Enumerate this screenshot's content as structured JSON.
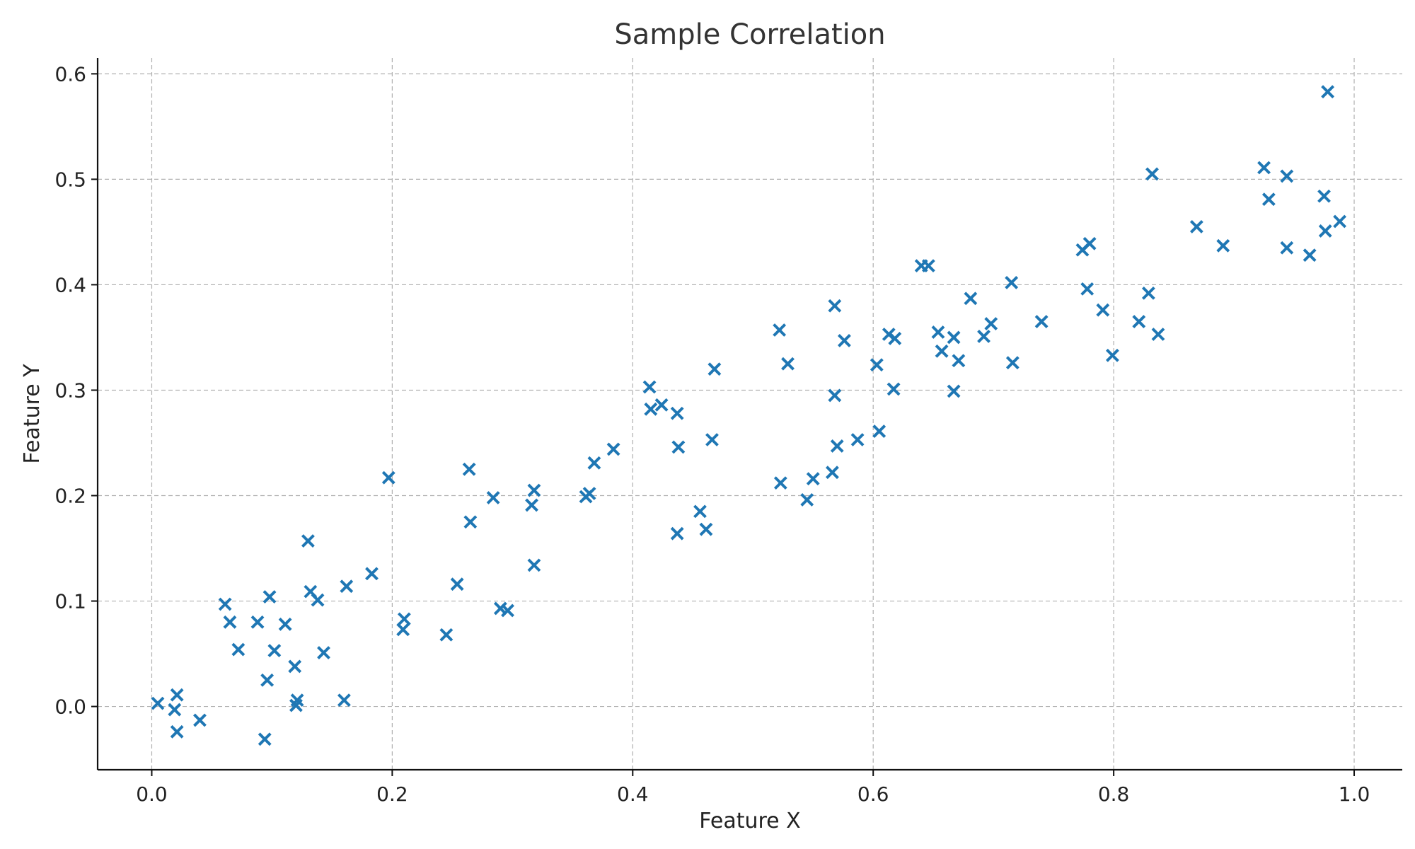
{
  "chart_data": {
    "type": "scatter",
    "title": "Sample Correlation",
    "xlabel": "Feature X",
    "ylabel": "Feature Y",
    "xlim": [
      -0.045,
      1.04
    ],
    "ylim": [
      -0.06,
      0.615
    ],
    "xticks": [
      0.0,
      0.2,
      0.4,
      0.6,
      0.8,
      1.0
    ],
    "xtick_labels": [
      "0.0",
      "0.2",
      "0.4",
      "0.6",
      "0.8",
      "1.0"
    ],
    "yticks": [
      0.0,
      0.1,
      0.2,
      0.3,
      0.4,
      0.5,
      0.6
    ],
    "ytick_labels": [
      "0.0",
      "0.1",
      "0.2",
      "0.3",
      "0.4",
      "0.5",
      "0.6"
    ],
    "grid": true,
    "marker": "x",
    "color": "#1f77b4",
    "series": [
      {
        "points": [
          [
            0.005,
            0.003
          ],
          [
            0.019,
            -0.003
          ],
          [
            0.021,
            0.011
          ],
          [
            0.021,
            -0.024
          ],
          [
            0.04,
            -0.013
          ],
          [
            0.061,
            0.097
          ],
          [
            0.065,
            0.08
          ],
          [
            0.072,
            0.054
          ],
          [
            0.088,
            0.08
          ],
          [
            0.094,
            -0.031
          ],
          [
            0.096,
            0.025
          ],
          [
            0.098,
            0.104
          ],
          [
            0.102,
            0.053
          ],
          [
            0.111,
            0.078
          ],
          [
            0.119,
            0.038
          ],
          [
            0.12,
            0.001
          ],
          [
            0.121,
            0.006
          ],
          [
            0.13,
            0.157
          ],
          [
            0.132,
            0.109
          ],
          [
            0.138,
            0.101
          ],
          [
            0.143,
            0.051
          ],
          [
            0.16,
            0.006
          ],
          [
            0.162,
            0.114
          ],
          [
            0.183,
            0.126
          ],
          [
            0.197,
            0.217
          ],
          [
            0.209,
            0.073
          ],
          [
            0.21,
            0.083
          ],
          [
            0.245,
            0.068
          ],
          [
            0.254,
            0.116
          ],
          [
            0.264,
            0.225
          ],
          [
            0.265,
            0.175
          ],
          [
            0.284,
            0.198
          ],
          [
            0.29,
            0.093
          ],
          [
            0.296,
            0.091
          ],
          [
            0.316,
            0.191
          ],
          [
            0.318,
            0.205
          ],
          [
            0.318,
            0.134
          ],
          [
            0.361,
            0.199
          ],
          [
            0.364,
            0.202
          ],
          [
            0.368,
            0.231
          ],
          [
            0.384,
            0.244
          ],
          [
            0.414,
            0.303
          ],
          [
            0.415,
            0.282
          ],
          [
            0.424,
            0.286
          ],
          [
            0.437,
            0.278
          ],
          [
            0.438,
            0.246
          ],
          [
            0.437,
            0.164
          ],
          [
            0.456,
            0.185
          ],
          [
            0.461,
            0.168
          ],
          [
            0.466,
            0.253
          ],
          [
            0.468,
            0.32
          ],
          [
            0.522,
            0.357
          ],
          [
            0.523,
            0.212
          ],
          [
            0.529,
            0.325
          ],
          [
            0.545,
            0.196
          ],
          [
            0.55,
            0.216
          ],
          [
            0.566,
            0.222
          ],
          [
            0.568,
            0.38
          ],
          [
            0.568,
            0.295
          ],
          [
            0.57,
            0.247
          ],
          [
            0.576,
            0.347
          ],
          [
            0.587,
            0.253
          ],
          [
            0.603,
            0.324
          ],
          [
            0.605,
            0.261
          ],
          [
            0.613,
            0.353
          ],
          [
            0.617,
            0.301
          ],
          [
            0.618,
            0.349
          ],
          [
            0.64,
            0.418
          ],
          [
            0.646,
            0.418
          ],
          [
            0.654,
            0.355
          ],
          [
            0.657,
            0.337
          ],
          [
            0.667,
            0.299
          ],
          [
            0.667,
            0.35
          ],
          [
            0.671,
            0.328
          ],
          [
            0.681,
            0.387
          ],
          [
            0.692,
            0.351
          ],
          [
            0.698,
            0.363
          ],
          [
            0.715,
            0.402
          ],
          [
            0.716,
            0.326
          ],
          [
            0.74,
            0.365
          ],
          [
            0.774,
            0.433
          ],
          [
            0.778,
            0.396
          ],
          [
            0.78,
            0.439
          ],
          [
            0.791,
            0.376
          ],
          [
            0.799,
            0.333
          ],
          [
            0.821,
            0.365
          ],
          [
            0.829,
            0.392
          ],
          [
            0.832,
            0.505
          ],
          [
            0.837,
            0.353
          ],
          [
            0.869,
            0.455
          ],
          [
            0.891,
            0.437
          ],
          [
            0.925,
            0.511
          ],
          [
            0.929,
            0.481
          ],
          [
            0.944,
            0.503
          ],
          [
            0.944,
            0.435
          ],
          [
            0.963,
            0.428
          ],
          [
            0.975,
            0.484
          ],
          [
            0.976,
            0.451
          ],
          [
            0.978,
            0.583
          ],
          [
            0.988,
            0.46
          ]
        ]
      }
    ]
  }
}
